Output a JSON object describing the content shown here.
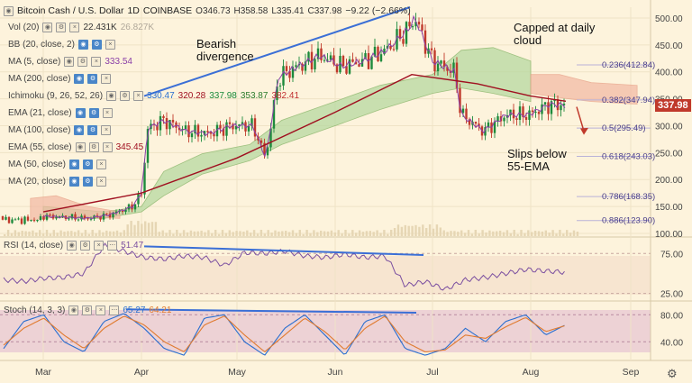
{
  "header": {
    "symbol": "Bitcoin Cash / U.S. Dollar",
    "interval": "1D",
    "exchange": "COINBASE",
    "open": "O346.73",
    "high": "H358.58",
    "low": "L335.41",
    "close": "C337.98",
    "change": "−9.22 (−2.66%)"
  },
  "indicators": [
    {
      "label": "Vol (20)",
      "values": [
        "22.431K",
        "26.827K"
      ],
      "colors": [
        "#333",
        "#b0a89a"
      ]
    },
    {
      "label": "BB (20, close, 2)",
      "values": [],
      "colors": []
    },
    {
      "label": "MA (5, close)",
      "values": [
        "333.54"
      ],
      "colors": [
        "#8a3fa8"
      ]
    },
    {
      "label": "MA (200, close)",
      "values": [],
      "colors": []
    },
    {
      "label": "Ichimoku (9, 26, 52, 26)",
      "values": [
        "330.47",
        "320.28",
        "337.98",
        "353.87",
        "382.41"
      ],
      "colors": [
        "#2a6fd0",
        "#a01020",
        "#1a8a3a",
        "#2a7a2a",
        "#c03030"
      ]
    },
    {
      "label": "EMA (21, close)",
      "values": [],
      "colors": []
    },
    {
      "label": "MA (100, close)",
      "values": [],
      "colors": []
    },
    {
      "label": "EMA (55, close)",
      "values": [
        "345.45"
      ],
      "colors": [
        "#a01020"
      ]
    },
    {
      "label": "MA (50, close)",
      "values": [],
      "colors": []
    },
    {
      "label": "MA (20, close)",
      "values": [],
      "colors": []
    }
  ],
  "rsi_legend": {
    "label": "RSI (14, close)",
    "value": "51.47"
  },
  "stoch_legend": {
    "label": "Stoch (14, 3, 3)",
    "values": [
      "65.27",
      "64.21"
    ]
  },
  "annotations": {
    "bearish": "Bearish\ndivergence",
    "capped": "Capped at daily\ncloud",
    "slips": "Slips below\n55-EMA"
  },
  "current_price": "337.98",
  "colors": {
    "background": "#fdf3dc",
    "up_candle": "#1d8a3c",
    "down_candle": "#c0392b",
    "ema55": "#a01020",
    "ma5": "#8a3fa8",
    "trendline": "#3b6fd6",
    "cloud_bull": "#b7d9a0",
    "cloud_bear": "#f3b8a3",
    "rsi": "#7b4fa0",
    "stoch_k": "#2a6fd0",
    "stoch_d": "#e07b30"
  },
  "chart_data": [
    {
      "type": "candlestick",
      "title": "Bitcoin Cash / U.S. Dollar 1D COINBASE",
      "x_ticks": [
        "Mar",
        "Apr",
        "May",
        "Jun",
        "Jul",
        "Aug",
        "Sep"
      ],
      "y_ticks": [
        100.0,
        150.0,
        200.0,
        250.0,
        300.0,
        350.0,
        400.0,
        450.0,
        500.0
      ],
      "ylim": [
        95,
        520
      ],
      "fib_levels": [
        {
          "label": "0.236(412.84)",
          "value": 412.84
        },
        {
          "label": "0.382(347.94)",
          "value": 347.94
        },
        {
          "label": "0.5(295.49)",
          "value": 295.49
        },
        {
          "label": "0.618(243.03)",
          "value": 243.03
        },
        {
          "label": "0.786(168.35)",
          "value": 168.35
        },
        {
          "label": "0.886(123.90)",
          "value": 123.9
        }
      ],
      "close_path": [
        [
          "Mar 1",
          132
        ],
        [
          "Mar 8",
          130
        ],
        [
          "Mar 15",
          128
        ],
        [
          "Mar 22",
          135
        ],
        [
          "Mar 29",
          150
        ],
        [
          "Apr 1",
          175
        ],
        [
          "Apr 3",
          295
        ],
        [
          "Apr 8",
          310
        ],
        [
          "Apr 15",
          290
        ],
        [
          "Apr 22",
          285
        ],
        [
          "Apr 29",
          300
        ],
        [
          "May 6",
          300
        ],
        [
          "May 10",
          240
        ],
        [
          "May 14",
          390
        ],
        [
          "May 20",
          410
        ],
        [
          "May 27",
          430
        ],
        [
          "Jun 3",
          410
        ],
        [
          "Jun 10",
          420
        ],
        [
          "Jun 17",
          440
        ],
        [
          "Jun 24",
          480
        ],
        [
          "Jun 26",
          500
        ],
        [
          "Jul 1",
          420
        ],
        [
          "Jul 8",
          400
        ],
        [
          "Jul 10",
          320
        ],
        [
          "Jul 17",
          290
        ],
        [
          "Jul 24",
          320
        ],
        [
          "Jul 31",
          320
        ],
        [
          "Aug 7",
          340
        ],
        [
          "Aug 12",
          337.98
        ]
      ],
      "ema55_path": [
        [
          "Mar 1",
          140
        ],
        [
          "Apr 1",
          175
        ],
        [
          "May 1",
          240
        ],
        [
          "Jun 1",
          325
        ],
        [
          "Jun 25",
          395
        ],
        [
          "Jul 15",
          378
        ],
        [
          "Aug 1",
          355
        ],
        [
          "Aug 12",
          345.45
        ]
      ]
    },
    {
      "type": "line",
      "title": "RSI (14, close)",
      "y_ticks": [
        25.0,
        75.0
      ],
      "ylim": [
        20,
        90
      ],
      "values": [
        42,
        40,
        44,
        45,
        50,
        85,
        78,
        70,
        68,
        72,
        70,
        60,
        76,
        75,
        78,
        72,
        70,
        74,
        70,
        72,
        35,
        40,
        30,
        42,
        45,
        50,
        55,
        53,
        51.47
      ]
    },
    {
      "type": "line",
      "title": "Stoch (14, 3, 3)",
      "y_ticks": [
        40.0,
        80.0
      ],
      "ylim": [
        15,
        95
      ],
      "series": [
        {
          "name": "K",
          "values": [
            30,
            70,
            80,
            40,
            25,
            70,
            82,
            60,
            30,
            20,
            75,
            80,
            40,
            20,
            60,
            80,
            50,
            20,
            70,
            80,
            30,
            20,
            30,
            60,
            40,
            70,
            80,
            50,
            65.27
          ]
        },
        {
          "name": "D",
          "values": [
            35,
            60,
            75,
            50,
            30,
            60,
            78,
            65,
            40,
            25,
            65,
            78,
            50,
            25,
            50,
            75,
            55,
            28,
            60,
            78,
            40,
            25,
            28,
            50,
            45,
            62,
            76,
            55,
            64.21
          ]
        }
      ]
    }
  ]
}
